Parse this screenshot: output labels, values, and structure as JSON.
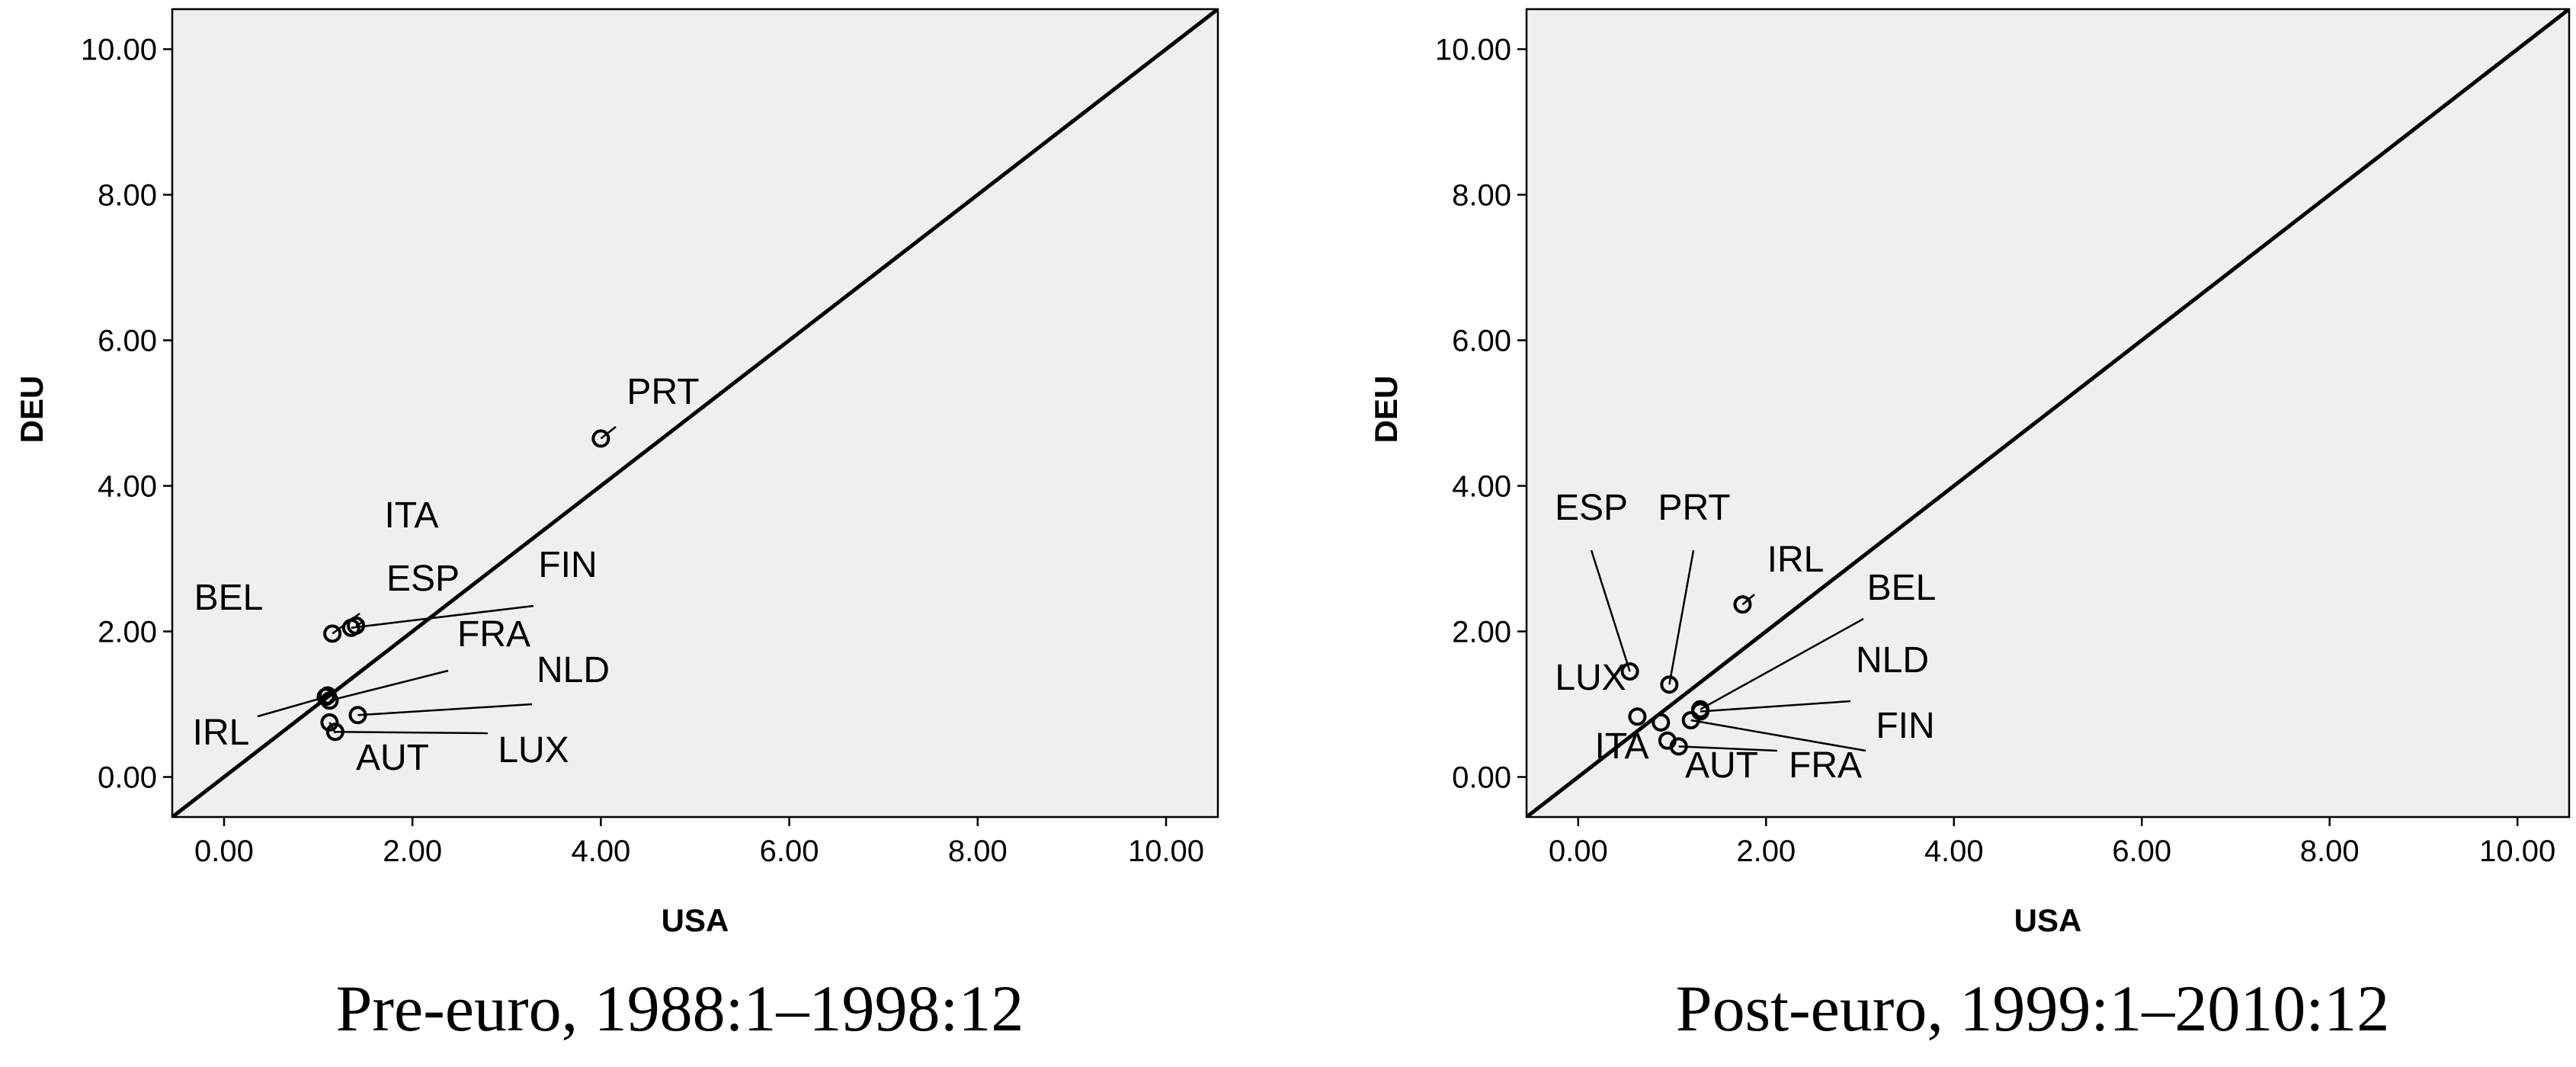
{
  "chart_data": [
    {
      "type": "scatter",
      "caption": "Pre-euro, 1988:1–1998:12",
      "xlabel": "USA",
      "ylabel": "DEU",
      "xlim": [
        -0.55,
        10.55
      ],
      "ylim": [
        -0.55,
        10.55
      ],
      "xticks": [
        "0.00",
        "2.00",
        "4.00",
        "6.00",
        "8.00",
        "10.00"
      ],
      "yticks": [
        "0.00",
        "2.00",
        "4.00",
        "6.00",
        "8.00",
        "10.00"
      ],
      "grid": false,
      "reference_line": "y = x",
      "background": "#efefef",
      "points": [
        {
          "label": "PRT",
          "x": 4.0,
          "y": 4.65
        },
        {
          "label": "ITA",
          "x": 1.15,
          "y": 1.97
        },
        {
          "label": "ESP",
          "x": 1.4,
          "y": 2.08
        },
        {
          "label": "FIN",
          "x": 1.35,
          "y": 2.05
        },
        {
          "label": "BEL",
          "x": 1.1,
          "y": 1.12
        },
        {
          "label": "FRA",
          "x": 1.12,
          "y": 1.05
        },
        {
          "label": "NLD",
          "x": 1.42,
          "y": 0.85
        },
        {
          "label": "IRL",
          "x": 1.08,
          "y": 1.1
        },
        {
          "label": "AUT",
          "x": 1.12,
          "y": 0.75
        },
        {
          "label": "LUX",
          "x": 1.18,
          "y": 0.62
        }
      ]
    },
    {
      "type": "scatter",
      "caption": "Post-euro, 1999:1–2010:12",
      "xlabel": "USA",
      "ylabel": "DEU",
      "xlim": [
        -0.55,
        10.55
      ],
      "ylim": [
        -0.55,
        10.55
      ],
      "xticks": [
        "0.00",
        "2.00",
        "4.00",
        "6.00",
        "8.00",
        "10.00"
      ],
      "yticks": [
        "0.00",
        "2.00",
        "4.00",
        "6.00",
        "8.00",
        "10.00"
      ],
      "grid": false,
      "reference_line": "y = x",
      "background": "#efefef",
      "points": [
        {
          "label": "IRL",
          "x": 1.75,
          "y": 2.37
        },
        {
          "label": "ESP",
          "x": 0.55,
          "y": 1.45
        },
        {
          "label": "PRT",
          "x": 0.97,
          "y": 1.27
        },
        {
          "label": "BEL",
          "x": 1.3,
          "y": 0.93
        },
        {
          "label": "NLD",
          "x": 1.3,
          "y": 0.9
        },
        {
          "label": "LUX",
          "x": 0.63,
          "y": 0.83
        },
        {
          "label": "ITA",
          "x": 0.88,
          "y": 0.75
        },
        {
          "label": "FIN",
          "x": 1.2,
          "y": 0.78
        },
        {
          "label": "AUT",
          "x": 0.95,
          "y": 0.5
        },
        {
          "label": "FRA",
          "x": 1.07,
          "y": 0.42
        }
      ]
    }
  ]
}
